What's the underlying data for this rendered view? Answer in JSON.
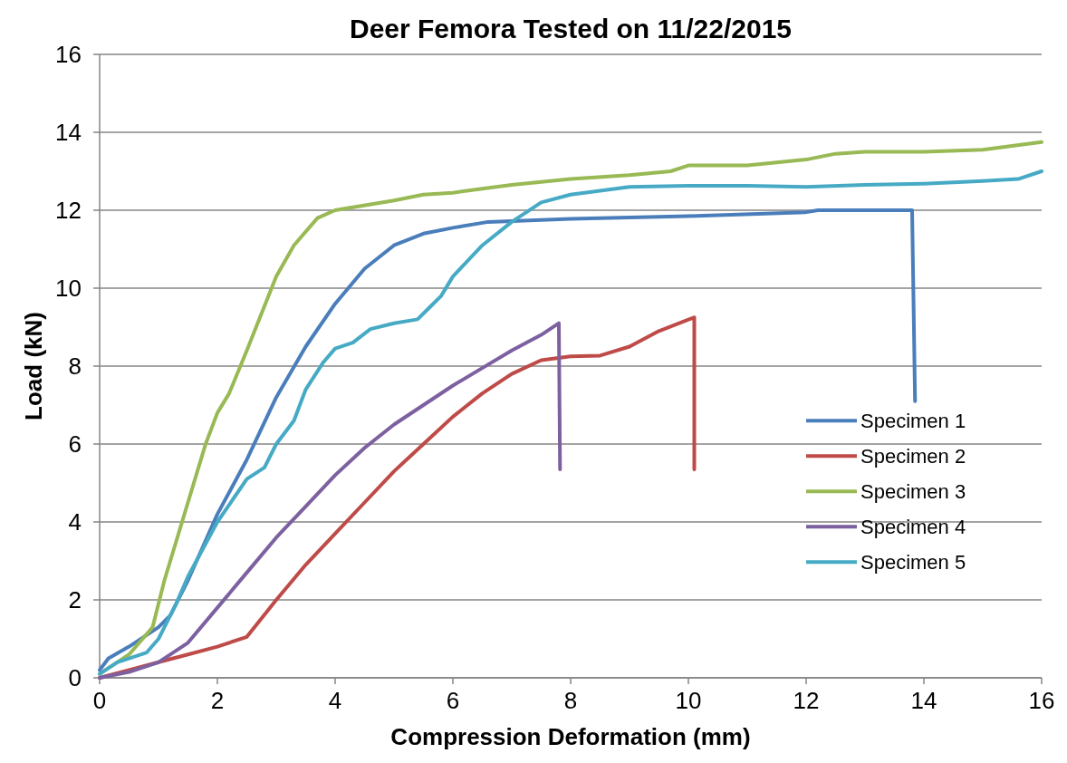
{
  "chart_data": {
    "type": "line",
    "title": "Deer Femora Tested on 11/22/2015",
    "xlabel": "Compression Deformation (mm)",
    "ylabel": "Load (kN)",
    "xlim": [
      0,
      16
    ],
    "ylim": [
      0,
      16
    ],
    "xticks": [
      0,
      2,
      4,
      6,
      8,
      10,
      12,
      14,
      16
    ],
    "yticks": [
      0,
      2,
      4,
      6,
      8,
      10,
      12,
      14,
      16
    ],
    "grid": "y",
    "legend": "right",
    "line_style": "solid",
    "marker": "none",
    "series": [
      {
        "name": "Specimen 1",
        "color": "#4a7ebb",
        "x": [
          0,
          0.15,
          0.5,
          1,
          1.2,
          1.5,
          2,
          2.5,
          3,
          3.5,
          4,
          4.5,
          5,
          5.5,
          6,
          6.6,
          8,
          10,
          12,
          12.2,
          13,
          13.8,
          13.85
        ],
        "values": [
          0.2,
          0.5,
          0.8,
          1.3,
          1.6,
          2.5,
          4.2,
          5.6,
          7.2,
          8.5,
          9.6,
          10.5,
          11.1,
          11.4,
          11.55,
          11.7,
          11.78,
          11.85,
          11.95,
          12.0,
          12.0,
          12.0,
          7.1
        ]
      },
      {
        "name": "Specimen 2",
        "color": "#be4b48",
        "x": [
          0,
          0.5,
          1,
          1.5,
          2,
          2.5,
          3,
          3.5,
          4,
          4.5,
          5,
          5.5,
          6,
          6.5,
          7,
          7.5,
          8,
          8.5,
          9,
          9.5,
          10.1,
          10.1
        ],
        "values": [
          0,
          0.2,
          0.4,
          0.6,
          0.8,
          1.05,
          2.0,
          2.9,
          3.7,
          4.5,
          5.3,
          6.0,
          6.7,
          7.3,
          7.8,
          8.15,
          8.25,
          8.27,
          8.5,
          8.9,
          9.25,
          5.35
        ]
      },
      {
        "name": "Specimen 3",
        "color": "#98b954",
        "x": [
          0,
          0.5,
          0.9,
          1.1,
          1.4,
          1.8,
          2,
          2.2,
          2.5,
          3,
          3.3,
          3.7,
          4,
          5,
          5.5,
          6,
          6.5,
          7,
          8,
          9,
          9.7,
          10,
          10.3,
          11,
          12,
          12.5,
          13,
          14,
          15,
          16
        ],
        "values": [
          0.1,
          0.6,
          1.3,
          2.5,
          4.0,
          6.0,
          6.8,
          7.3,
          8.4,
          10.3,
          11.1,
          11.8,
          12.0,
          12.25,
          12.4,
          12.45,
          12.55,
          12.65,
          12.8,
          12.9,
          13.0,
          13.15,
          13.15,
          13.15,
          13.3,
          13.45,
          13.5,
          13.5,
          13.55,
          13.75
        ]
      },
      {
        "name": "Specimen 4",
        "color": "#7d60a0",
        "x": [
          0,
          0.5,
          1,
          1.5,
          2,
          2.5,
          3,
          3.5,
          4,
          4.5,
          5,
          5.5,
          6,
          6.5,
          7,
          7.5,
          7.8,
          7.82
        ],
        "values": [
          0,
          0.15,
          0.4,
          0.9,
          1.8,
          2.7,
          3.6,
          4.4,
          5.2,
          5.9,
          6.5,
          7.0,
          7.5,
          7.95,
          8.4,
          8.8,
          9.1,
          5.35
        ]
      },
      {
        "name": "Specimen 5",
        "color": "#46aac5",
        "x": [
          0,
          0.3,
          0.8,
          1,
          1.3,
          1.5,
          2,
          2.5,
          2.8,
          3,
          3.3,
          3.5,
          3.8,
          4,
          4.3,
          4.6,
          5,
          5.4,
          5.6,
          5.8,
          6,
          6.5,
          7,
          7.5,
          8,
          9,
          10,
          11,
          12,
          13,
          14,
          15,
          15.6,
          16
        ],
        "values": [
          0.1,
          0.4,
          0.65,
          1.0,
          1.9,
          2.6,
          4.0,
          5.1,
          5.4,
          6.0,
          6.6,
          7.4,
          8.1,
          8.45,
          8.6,
          8.95,
          9.1,
          9.2,
          9.5,
          9.8,
          10.3,
          11.1,
          11.7,
          12.2,
          12.4,
          12.6,
          12.63,
          12.63,
          12.6,
          12.65,
          12.68,
          12.75,
          12.8,
          13.0
        ]
      }
    ]
  }
}
